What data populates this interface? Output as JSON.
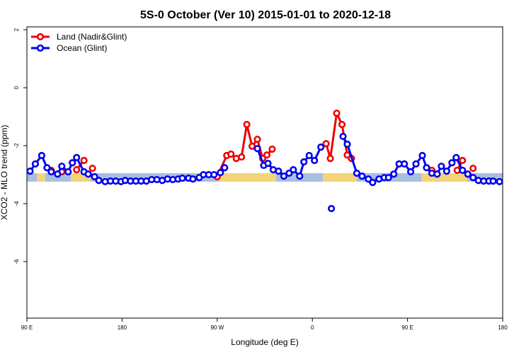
{
  "chart_data": {
    "type": "line",
    "title": "5S-0 October (Ver 10)   2015-01-01 to 2020-12-18",
    "x_label": "Longitude (deg E)",
    "y_label": "XCO2 - MLO trend (ppm)",
    "xlim": [
      90,
      540
    ],
    "ylim": [
      -7.95,
      2.1
    ],
    "xticks": [
      {
        "value": 90,
        "label": "90 E"
      },
      {
        "value": 180,
        "label": "180"
      },
      {
        "value": 270,
        "label": "90 W"
      },
      {
        "value": 360,
        "label": "0"
      },
      {
        "value": 450,
        "label": "90 E"
      },
      {
        "value": 540,
        "label": "180"
      }
    ],
    "yticks": [
      2,
      0,
      -2,
      -4,
      -6
    ],
    "legend": "top-left",
    "series": [
      {
        "name": "Land (Nadir&Glint)",
        "color": "#ee0000",
        "x": [
          113,
          119,
          123,
          null,
          137,
          144,
          null,
          152,
          null,
          270,
          279,
          283,
          288,
          293,
          298,
          303,
          308,
          313,
          317,
          322,
          null,
          373,
          377,
          383,
          388,
          393,
          397,
          null,
          473,
          478,
          null,
          497,
          502,
          null,
          512
        ],
        "values": [
          -2.85,
          -2.98,
          -2.9,
          null,
          -2.83,
          -2.51,
          null,
          -2.78,
          null,
          -3.07,
          -2.34,
          -2.29,
          -2.44,
          -2.39,
          -1.27,
          -2.02,
          -1.78,
          -2.44,
          -2.32,
          -2.12,
          null,
          -1.93,
          -2.44,
          -0.88,
          -1.27,
          -2.32,
          -2.44,
          null,
          -2.85,
          -2.98,
          null,
          -2.85,
          -2.51,
          null,
          -2.78
        ]
      },
      {
        "name": "Ocean (Glint)",
        "color": "#0000ee",
        "x": [
          93,
          98,
          104,
          109,
          113,
          119,
          123,
          129,
          133,
          137,
          144,
          148,
          154,
          158,
          164,
          169,
          174,
          179,
          183,
          188,
          193,
          198,
          203,
          208,
          213,
          218,
          223,
          228,
          233,
          237,
          243,
          247,
          253,
          257,
          262,
          267,
          273,
          277,
          null,
          308,
          314,
          318,
          323,
          328,
          333,
          338,
          342,
          348,
          352,
          357,
          362,
          368,
          null,
          378,
          null,
          389,
          393,
          402,
          407,
          413,
          417,
          423,
          428,
          432,
          437,
          442,
          447,
          453,
          458,
          464,
          468,
          473,
          478,
          482,
          487,
          492,
          496,
          502,
          507,
          512,
          517,
          522,
          527,
          531,
          537
        ],
        "values": [
          -2.88,
          -2.63,
          -2.34,
          -2.76,
          -2.9,
          -2.98,
          -2.71,
          -2.9,
          -2.59,
          -2.41,
          -2.9,
          -2.98,
          -3.07,
          -3.2,
          -3.24,
          -3.22,
          -3.22,
          -3.24,
          -3.2,
          -3.22,
          -3.22,
          -3.22,
          -3.22,
          -3.17,
          -3.17,
          -3.2,
          -3.15,
          -3.17,
          -3.15,
          -3.12,
          -3.12,
          -3.15,
          -3.1,
          -3.0,
          -3.0,
          -3.0,
          -2.93,
          -2.76,
          null,
          -2.1,
          -2.68,
          -2.61,
          -2.83,
          -2.88,
          -3.05,
          -2.95,
          -2.83,
          -3.05,
          -2.56,
          -2.34,
          -2.51,
          -2.05,
          null,
          -4.17,
          null,
          -1.68,
          -1.95,
          -2.95,
          -3.05,
          -3.15,
          -3.27,
          -3.15,
          -3.1,
          -3.1,
          -2.98,
          -2.63,
          -2.63,
          -2.9,
          -2.63,
          -2.34,
          -2.76,
          -2.95,
          -2.98,
          -2.71,
          -2.88,
          -2.59,
          -2.41,
          -2.85,
          -2.98,
          -3.1,
          -3.2,
          -3.22,
          -3.22,
          -3.22,
          -3.24
        ]
      }
    ]
  }
}
